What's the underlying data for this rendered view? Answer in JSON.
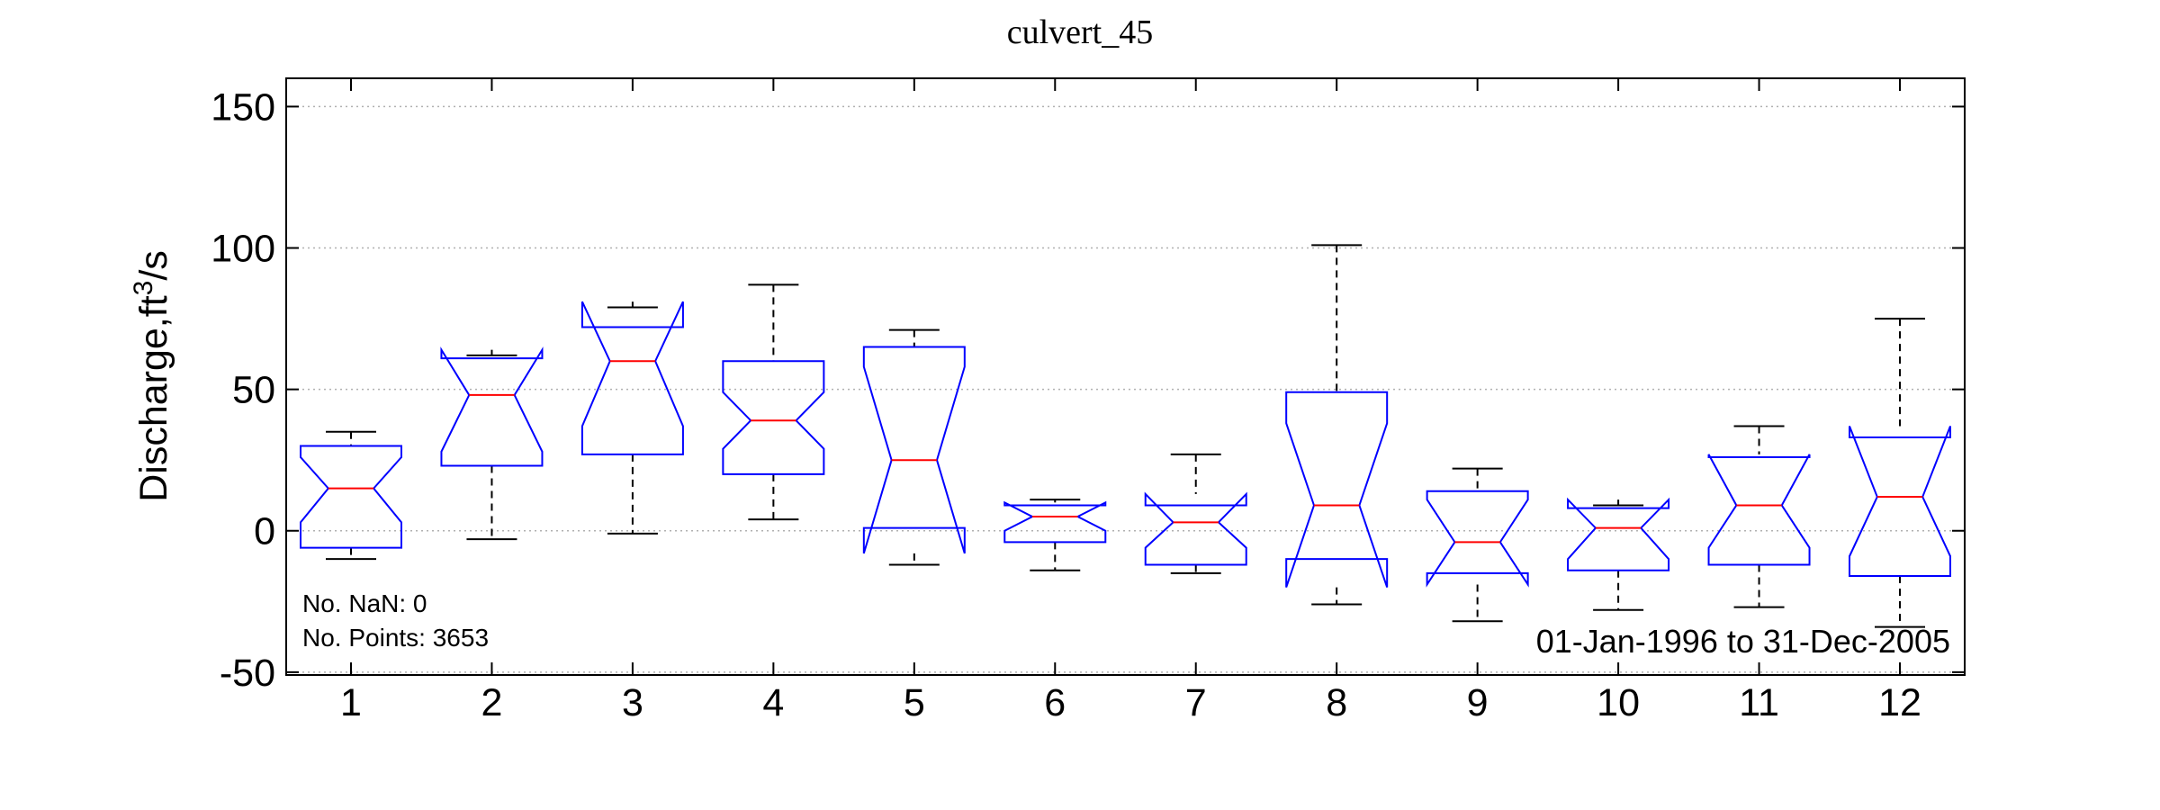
{
  "chart_data": {
    "type": "boxplot",
    "title": "culvert_45",
    "ylabel": {
      "main": "Discharge,ft",
      "sup": "3",
      "tail": "/s"
    },
    "xlabel": "",
    "categories": [
      "1",
      "2",
      "3",
      "4",
      "5",
      "6",
      "7",
      "8",
      "9",
      "10",
      "11",
      "12"
    ],
    "ylim": [
      -51,
      160
    ],
    "yticks": [
      -50,
      0,
      50,
      100,
      150
    ],
    "grid": true,
    "notched": true,
    "box_color": "#0000ff",
    "median_color": "#ff0000",
    "whisker_color": "#000000",
    "boxes": [
      {
        "month": "1",
        "whisker_low": -10,
        "q1": -6,
        "notch_low": 3,
        "median": 15,
        "notch_high": 26,
        "q3": 30,
        "whisker_high": 35
      },
      {
        "month": "2",
        "whisker_low": -3,
        "q1": 23,
        "notch_low": 28,
        "median": 48,
        "notch_high": 64,
        "q3": 61,
        "whisker_high": 62
      },
      {
        "month": "3",
        "whisker_low": -1,
        "q1": 27,
        "notch_low": 37,
        "median": 60,
        "notch_high": 81,
        "q3": 72,
        "whisker_high": 79
      },
      {
        "month": "4",
        "whisker_low": 4,
        "q1": 20,
        "notch_low": 29,
        "median": 39,
        "notch_high": 49,
        "q3": 60,
        "whisker_high": 87
      },
      {
        "month": "5",
        "whisker_low": -12,
        "q1": 1,
        "notch_low": -8,
        "median": 25,
        "notch_high": 58,
        "q3": 65,
        "whisker_high": 71
      },
      {
        "month": "6",
        "whisker_low": -14,
        "q1": -4,
        "notch_low": 0,
        "median": 5,
        "notch_high": 10,
        "q3": 9,
        "whisker_high": 11
      },
      {
        "month": "7",
        "whisker_low": -15,
        "q1": -12,
        "notch_low": -6,
        "median": 3,
        "notch_high": 13,
        "q3": 9,
        "whisker_high": 27
      },
      {
        "month": "8",
        "whisker_low": -26,
        "q1": -10,
        "notch_low": -20,
        "median": 9,
        "notch_high": 38,
        "q3": 49,
        "whisker_high": 101
      },
      {
        "month": "9",
        "whisker_low": -32,
        "q1": -15,
        "notch_low": -19,
        "median": -4,
        "notch_high": 11,
        "q3": 14,
        "whisker_high": 22
      },
      {
        "month": "10",
        "whisker_low": -28,
        "q1": -14,
        "notch_low": -10,
        "median": 1,
        "notch_high": 11,
        "q3": 8,
        "whisker_high": 9
      },
      {
        "month": "11",
        "whisker_low": -27,
        "q1": -12,
        "notch_low": -6,
        "median": 9,
        "notch_high": 27,
        "q3": 26,
        "whisker_high": 37
      },
      {
        "month": "12",
        "whisker_low": -34,
        "q1": -16,
        "notch_low": -9,
        "median": 12,
        "notch_high": 37,
        "q3": 33,
        "whisker_high": 75
      }
    ],
    "annotations": {
      "nan_count": "No. NaN: 0",
      "points_count": "No. Points: 3653",
      "date_range": "01-Jan-1996 to 31-Dec-2005"
    }
  }
}
